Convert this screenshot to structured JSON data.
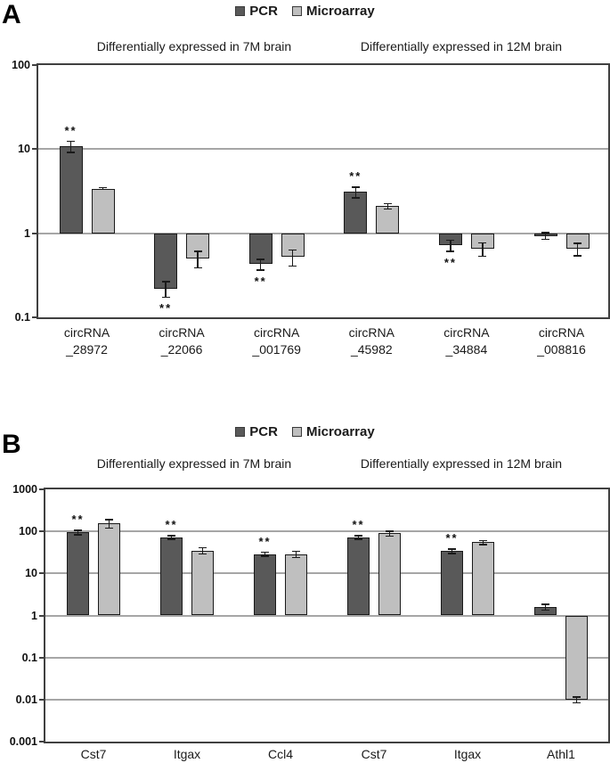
{
  "colors": {
    "pcr_fill": "#595959",
    "microarray_fill": "#bfbfbf",
    "bar_border": "#1a1a1a",
    "gridline": "#a6a6a6",
    "frame": "#404040",
    "error_bar": "#1a1a1a",
    "text": "#1a1a1a",
    "background": "#ffffff"
  },
  "chart_data": [
    {
      "type": "bar",
      "panel_label": "A",
      "yscale": "log",
      "ylim": [
        0.1,
        100
      ],
      "ytick_labels": [
        "100",
        "10",
        "1",
        "0.1"
      ],
      "ytick_values": [
        100,
        10,
        1,
        0.1
      ],
      "baseline": 1,
      "grid": "horizontal-decades",
      "legend_position": "top-center",
      "legend": [
        "PCR",
        "Microarray"
      ],
      "subtitles": [
        "Differentially expressed in 7M brain",
        "Differentially expressed in 12M brain"
      ],
      "categories": [
        "circRNA\n_28972",
        "circRNA\n_22066",
        "circRNA\n_001769",
        "circRNA\n_45982",
        "circRNA\n_34884",
        "circRNA\n_008816"
      ],
      "series": [
        {
          "name": "PCR",
          "color": "#595959",
          "values": [
            10.8,
            0.22,
            0.43,
            3.1,
            0.72,
            0.93
          ],
          "errors": [
            1.8,
            0.05,
            0.07,
            0.5,
            0.12,
            0.1
          ],
          "significance": [
            "**",
            "**",
            "**",
            "**",
            "**",
            ""
          ]
        },
        {
          "name": "Microarray",
          "color": "#bfbfbf",
          "values": [
            3.4,
            0.5,
            0.52,
            2.1,
            0.65,
            0.65
          ],
          "errors": [
            0.15,
            0.12,
            0.12,
            0.2,
            0.13,
            0.12
          ],
          "significance": [
            "",
            "",
            "",
            "",
            "",
            ""
          ]
        }
      ]
    },
    {
      "type": "bar",
      "panel_label": "B",
      "yscale": "log",
      "ylim": [
        0.001,
        1000
      ],
      "ytick_labels": [
        "1000",
        "100",
        "10",
        "1",
        "0.1",
        "0.01",
        "0.001"
      ],
      "ytick_values": [
        1000,
        100,
        10,
        1,
        0.1,
        0.01,
        0.001
      ],
      "baseline": 1,
      "grid": "horizontal-decades",
      "legend_position": "top-center",
      "legend": [
        "PCR",
        "Microarray"
      ],
      "subtitles": [
        "Differentially expressed in 7M brain",
        "Differentially expressed in 12M brain"
      ],
      "categories": [
        "Cst7",
        "Itgax",
        "Ccl4",
        "Cst7",
        "Itgax",
        "Athl1"
      ],
      "series": [
        {
          "name": "PCR",
          "color": "#595959",
          "values": [
            95,
            72,
            29,
            72,
            34,
            1.6
          ],
          "errors": [
            15,
            10,
            4,
            10,
            5,
            0.3
          ],
          "significance": [
            "**",
            "**",
            "**",
            "**",
            "**",
            ""
          ]
        },
        {
          "name": "Microarray",
          "color": "#bfbfbf",
          "values": [
            155,
            35,
            29,
            90,
            55,
            0.01
          ],
          "errors": [
            40,
            7,
            6,
            15,
            8,
            0.002
          ],
          "significance": [
            "",
            "",
            "",
            "",
            "",
            ""
          ]
        }
      ]
    }
  ]
}
